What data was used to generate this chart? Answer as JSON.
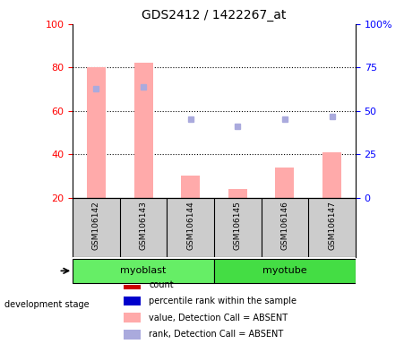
{
  "title": "GDS2412 / 1422267_at",
  "samples": [
    "GSM106142",
    "GSM106143",
    "GSM106144",
    "GSM106145",
    "GSM106146",
    "GSM106147"
  ],
  "groups": [
    {
      "name": "myoblast",
      "indices": [
        0,
        1,
        2
      ],
      "color": "#66ee66"
    },
    {
      "name": "myotube",
      "indices": [
        3,
        4,
        5
      ],
      "color": "#44dd44"
    }
  ],
  "bar_values": [
    80,
    82,
    30,
    24,
    34,
    41
  ],
  "rank_values": [
    63,
    64,
    45,
    41,
    45,
    47
  ],
  "bar_color": "#ffaaaa",
  "rank_color": "#aaaadd",
  "left_yticks": [
    20,
    40,
    60,
    80,
    100
  ],
  "right_yticks": [
    0,
    25,
    50,
    75,
    100
  ],
  "right_ytick_labels": [
    "0",
    "25",
    "50",
    "75",
    "100%"
  ],
  "ylim_left": [
    20,
    100
  ],
  "ylim_right": [
    0,
    100
  ],
  "grid_values": [
    40,
    60,
    80
  ],
  "background_color": "#ffffff",
  "sample_area_color": "#cccccc",
  "bar_width": 0.4,
  "legend_items": [
    {
      "color": "#cc0000",
      "label": "count"
    },
    {
      "color": "#0000cc",
      "label": "percentile rank within the sample"
    },
    {
      "color": "#ffaaaa",
      "label": "value, Detection Call = ABSENT"
    },
    {
      "color": "#aaaadd",
      "label": "rank, Detection Call = ABSENT"
    }
  ]
}
